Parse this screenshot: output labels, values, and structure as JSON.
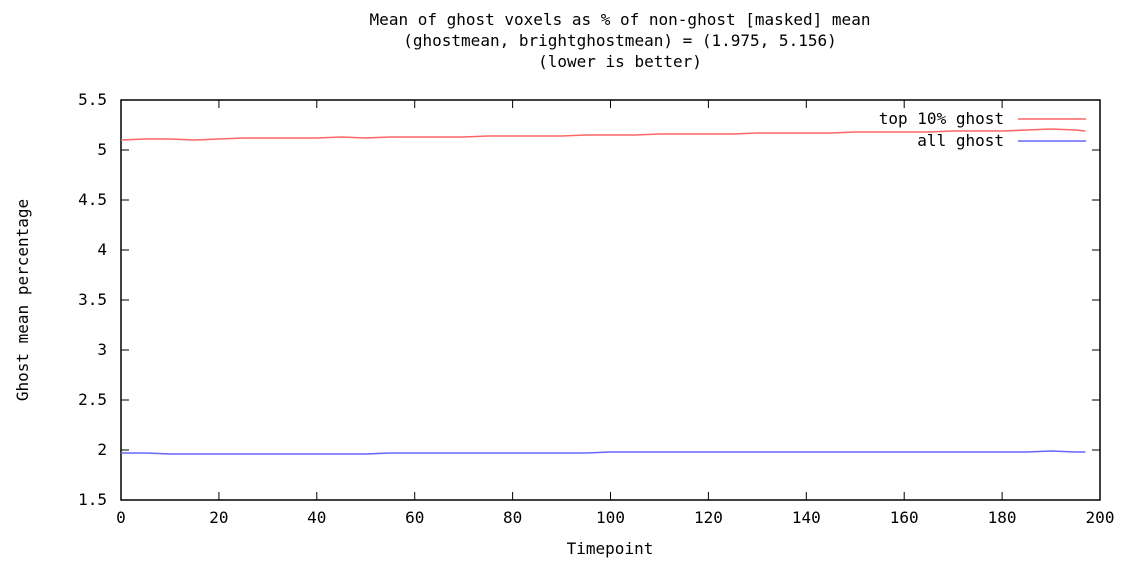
{
  "chart_data": {
    "type": "line",
    "title_lines": [
      "Mean of ghost voxels as % of non-ghost [masked] mean",
      "(ghostmean, brightghostmean) = (1.975, 5.156)",
      "(lower is better)"
    ],
    "xlabel": "Timepoint",
    "ylabel": "Ghost mean percentage",
    "xlim": [
      0,
      200
    ],
    "ylim": [
      1.5,
      5.5
    ],
    "x_ticks": [
      0,
      20,
      40,
      60,
      80,
      100,
      120,
      140,
      160,
      180,
      200
    ],
    "x_tick_labels": [
      "0",
      "20",
      "40",
      "60",
      "80",
      "100",
      "120",
      "140",
      "160",
      "180",
      "200"
    ],
    "y_ticks": [
      1.5,
      2,
      2.5,
      3,
      3.5,
      4,
      4.5,
      5,
      5.5
    ],
    "y_tick_labels": [
      "1.5",
      "2",
      "2.5",
      "3",
      "3.5",
      "4",
      "4.5",
      "5",
      "5.5"
    ],
    "grid": false,
    "legend_position": "top-right",
    "series": [
      {
        "name": "top 10% ghost",
        "color": "#ff6666",
        "x": [
          0,
          5,
          10,
          15,
          20,
          25,
          30,
          35,
          40,
          45,
          50,
          55,
          60,
          65,
          70,
          75,
          80,
          85,
          90,
          95,
          100,
          105,
          110,
          115,
          120,
          125,
          130,
          135,
          140,
          145,
          150,
          155,
          160,
          165,
          170,
          175,
          180,
          185,
          190,
          195,
          197
        ],
        "values": [
          5.1,
          5.11,
          5.11,
          5.1,
          5.11,
          5.12,
          5.12,
          5.12,
          5.12,
          5.13,
          5.12,
          5.13,
          5.13,
          5.13,
          5.13,
          5.14,
          5.14,
          5.14,
          5.14,
          5.15,
          5.15,
          5.15,
          5.16,
          5.16,
          5.16,
          5.16,
          5.17,
          5.17,
          5.17,
          5.17,
          5.18,
          5.18,
          5.18,
          5.18,
          5.19,
          5.19,
          5.19,
          5.2,
          5.21,
          5.2,
          5.19
        ]
      },
      {
        "name": "all ghost",
        "color": "#6666ff",
        "x": [
          0,
          5,
          10,
          15,
          20,
          25,
          30,
          35,
          40,
          45,
          50,
          55,
          60,
          65,
          70,
          75,
          80,
          85,
          90,
          95,
          100,
          105,
          110,
          115,
          120,
          125,
          130,
          135,
          140,
          145,
          150,
          155,
          160,
          165,
          170,
          175,
          180,
          185,
          190,
          195,
          197
        ],
        "values": [
          1.97,
          1.97,
          1.96,
          1.96,
          1.96,
          1.96,
          1.96,
          1.96,
          1.96,
          1.96,
          1.96,
          1.97,
          1.97,
          1.97,
          1.97,
          1.97,
          1.97,
          1.97,
          1.97,
          1.97,
          1.98,
          1.98,
          1.98,
          1.98,
          1.98,
          1.98,
          1.98,
          1.98,
          1.98,
          1.98,
          1.98,
          1.98,
          1.98,
          1.98,
          1.98,
          1.98,
          1.98,
          1.98,
          1.99,
          1.98,
          1.98
        ]
      }
    ]
  }
}
